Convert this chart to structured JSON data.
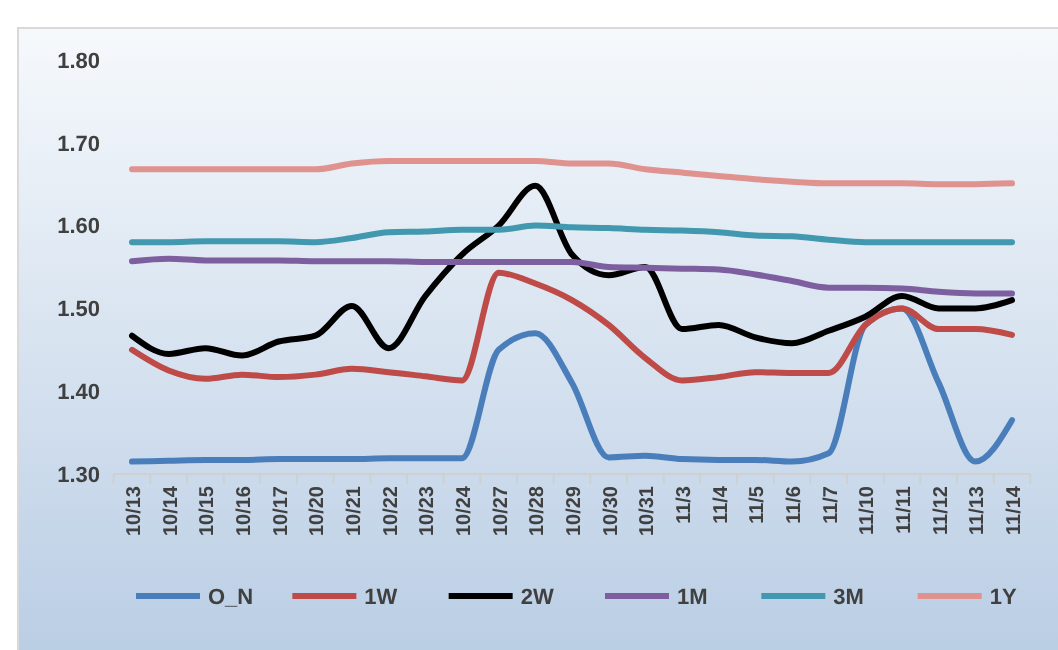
{
  "chart_data": {
    "type": "line",
    "categories": [
      "10/13",
      "10/14",
      "10/15",
      "10/16",
      "10/17",
      "10/20",
      "10/21",
      "10/22",
      "10/23",
      "10/24",
      "10/27",
      "10/28",
      "10/29",
      "10/30",
      "10/31",
      "11/3",
      "11/4",
      "11/5",
      "11/6",
      "11/7",
      "11/10",
      "11/11",
      "11/12",
      "11/13",
      "11/14"
    ],
    "series": [
      {
        "name": "O_N",
        "color": "#4a7ebb",
        "values": [
          1.315,
          1.316,
          1.317,
          1.317,
          1.318,
          1.318,
          1.318,
          1.319,
          1.319,
          1.319,
          1.45,
          1.47,
          1.41,
          1.32,
          1.322,
          1.318,
          1.317,
          1.317,
          1.315,
          1.325,
          1.48,
          1.5,
          1.41,
          1.315,
          1.365
        ]
      },
      {
        "name": "1W",
        "color": "#be4b48",
        "values": [
          1.45,
          1.425,
          1.415,
          1.42,
          1.417,
          1.42,
          1.427,
          1.423,
          1.418,
          1.413,
          1.543,
          1.53,
          1.51,
          1.48,
          1.44,
          1.413,
          1.417,
          1.423,
          1.422,
          1.422,
          1.48,
          1.5,
          1.475,
          1.475,
          1.468
        ]
      },
      {
        "name": "2W",
        "color": "#000000",
        "values": [
          1.467,
          1.445,
          1.452,
          1.443,
          1.46,
          1.467,
          1.503,
          1.452,
          1.515,
          1.565,
          1.6,
          1.648,
          1.565,
          1.54,
          1.55,
          1.475,
          1.48,
          1.465,
          1.458,
          1.473,
          1.49,
          1.515,
          1.5,
          1.5,
          1.51
        ]
      },
      {
        "name": "1M",
        "color": "#7d5fa0",
        "values": [
          1.557,
          1.56,
          1.558,
          1.558,
          1.558,
          1.557,
          1.557,
          1.557,
          1.556,
          1.556,
          1.556,
          1.556,
          1.556,
          1.55,
          1.549,
          1.548,
          1.547,
          1.541,
          1.533,
          1.525,
          1.525,
          1.524,
          1.52,
          1.518,
          1.518
        ]
      },
      {
        "name": "3M",
        "color": "#4198af",
        "values": [
          1.58,
          1.58,
          1.581,
          1.581,
          1.581,
          1.58,
          1.585,
          1.592,
          1.593,
          1.595,
          1.595,
          1.6,
          1.598,
          1.597,
          1.595,
          1.594,
          1.592,
          1.588,
          1.587,
          1.583,
          1.58,
          1.58,
          1.58,
          1.58,
          1.58
        ]
      },
      {
        "name": "1Y",
        "color": "#e0928f",
        "values": [
          1.668,
          1.668,
          1.668,
          1.668,
          1.668,
          1.668,
          1.675,
          1.678,
          1.678,
          1.678,
          1.678,
          1.678,
          1.675,
          1.675,
          1.668,
          1.664,
          1.66,
          1.656,
          1.653,
          1.651,
          1.651,
          1.651,
          1.65,
          1.65,
          1.651
        ]
      }
    ],
    "ylim": [
      1.3,
      1.8
    ],
    "yticks": [
      {
        "value": 1.3,
        "label": "1.30"
      },
      {
        "value": 1.4,
        "label": "1.40"
      },
      {
        "value": 1.5,
        "label": "1.50"
      },
      {
        "value": 1.6,
        "label": "1.60"
      },
      {
        "value": 1.7,
        "label": "1.70"
      },
      {
        "value": 1.8,
        "label": "1.80"
      }
    ],
    "grid": false,
    "legend": "bottom",
    "marker": "none",
    "line_style": "solid"
  }
}
